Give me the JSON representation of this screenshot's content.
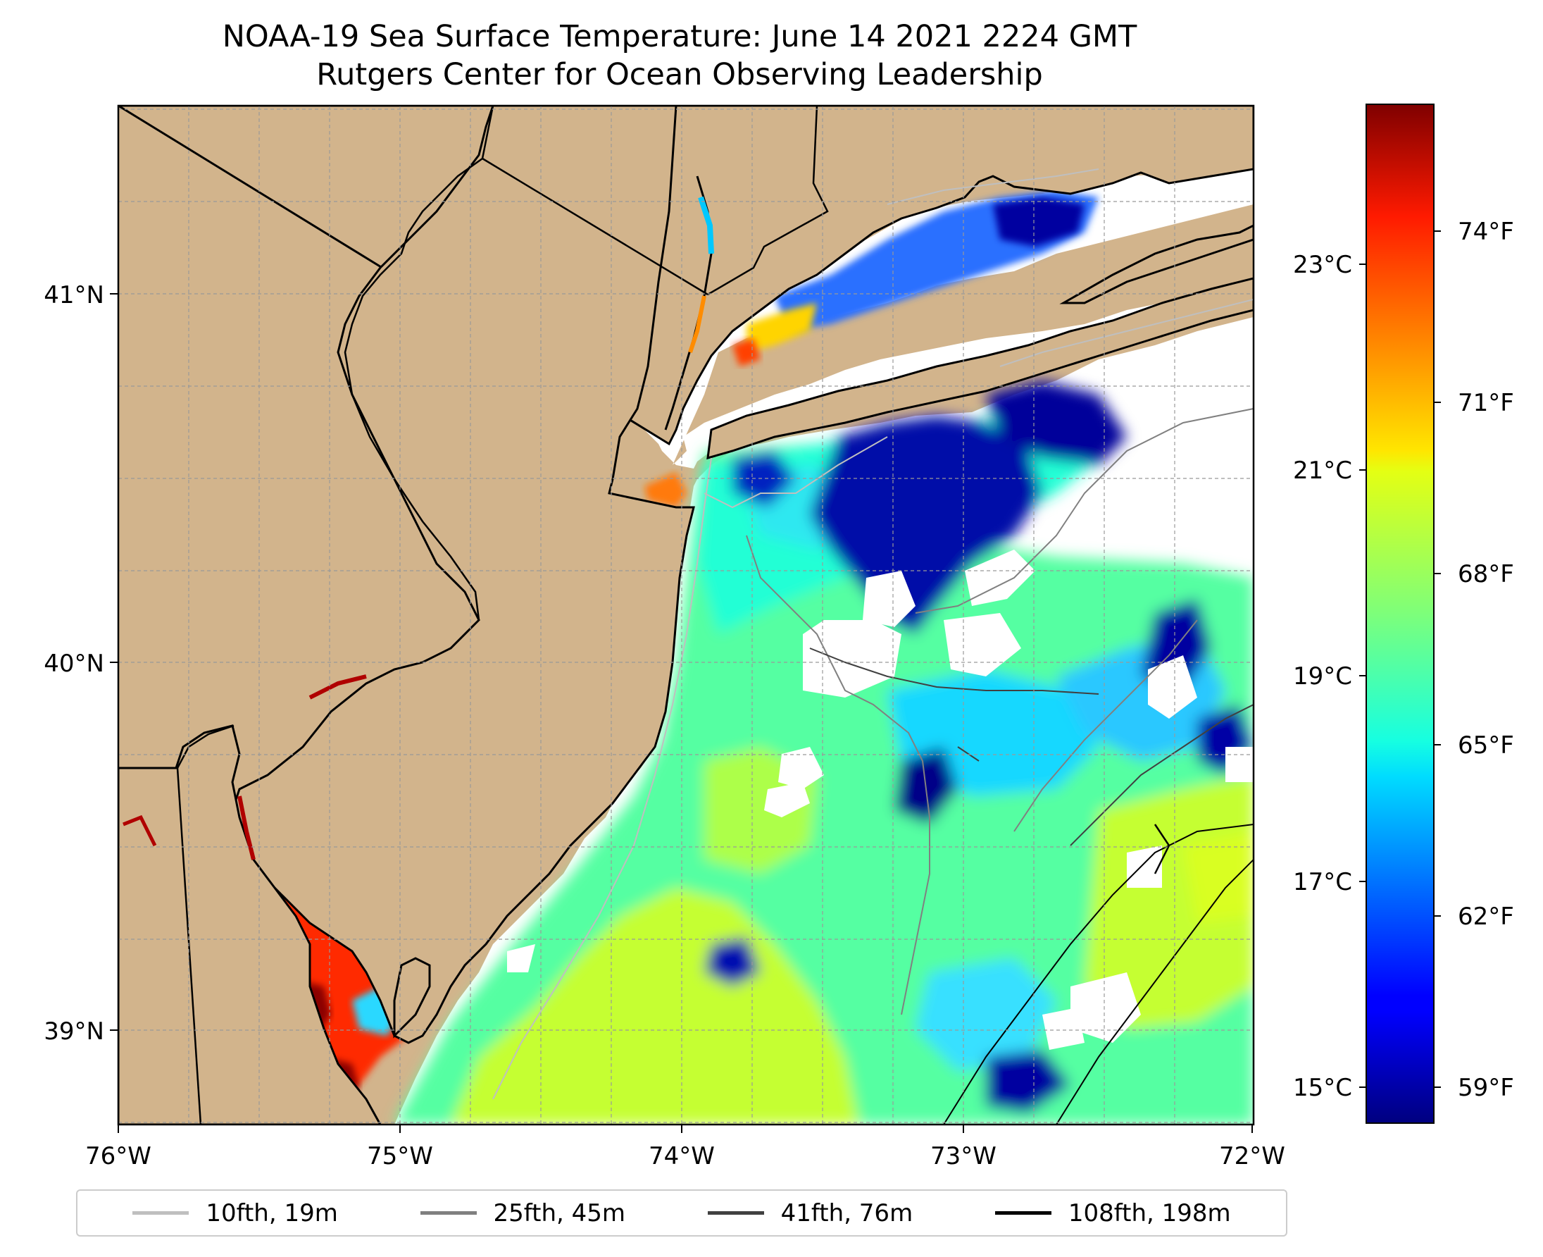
{
  "title": {
    "line1": "NOAA-19 Sea Surface Temperature: June 14 2021 2224 GMT",
    "line2": "Rutgers Center for Ocean Observing Leadership"
  },
  "map": {
    "land_color": "#d2b48c",
    "no_data_color": "#ffffff",
    "lon_ticks": [
      "76°W",
      "75°W",
      "74°W",
      "73°W",
      "72°W"
    ],
    "lat_ticks": [
      "41°N",
      "40°N",
      "39°N"
    ],
    "lon_range": [
      -76.0,
      -72.0
    ],
    "lat_range": [
      38.72,
      41.5
    ]
  },
  "colorbar": {
    "colormap": "jet",
    "celsius_ticks": [
      "23°C",
      "21°C",
      "19°C",
      "17°C",
      "15°C"
    ],
    "fahrenheit_ticks": [
      "74°F",
      "71°F",
      "68°F",
      "65°F",
      "62°F",
      "59°F"
    ],
    "range_celsius": [
      14.7,
      24.6
    ]
  },
  "legend": {
    "items": [
      {
        "label": "10fth, 19m",
        "color": "#bfbfbf"
      },
      {
        "label": "25fth, 45m",
        "color": "#808080"
      },
      {
        "label": "41fth, 76m",
        "color": "#404040"
      },
      {
        "label": "108fth, 198m",
        "color": "#000000"
      }
    ]
  }
}
